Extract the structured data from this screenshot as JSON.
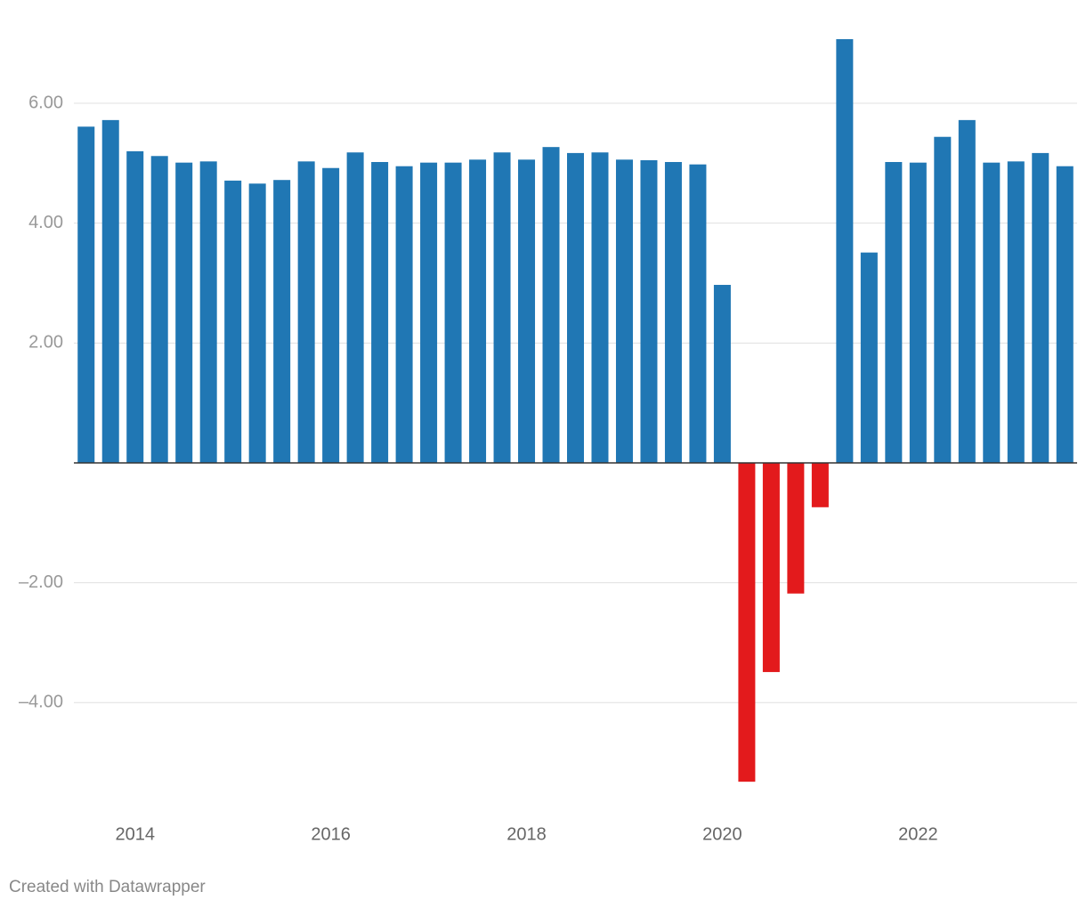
{
  "chart_data": {
    "type": "bar",
    "categories": [
      null,
      null,
      "2014",
      null,
      null,
      null,
      null,
      null,
      null,
      null,
      "2016",
      null,
      null,
      null,
      null,
      null,
      null,
      null,
      "2018",
      null,
      null,
      null,
      null,
      null,
      null,
      null,
      "2020",
      null,
      null,
      null,
      null,
      null,
      null,
      null,
      "2022",
      null,
      null,
      null,
      null,
      null,
      null
    ],
    "values": [
      5.61,
      5.72,
      5.2,
      5.12,
      5.01,
      5.03,
      4.71,
      4.66,
      4.72,
      5.03,
      4.92,
      5.18,
      5.02,
      4.95,
      5.01,
      5.01,
      5.06,
      5.18,
      5.06,
      5.27,
      5.17,
      5.18,
      5.06,
      5.05,
      5.02,
      4.98,
      2.97,
      -5.32,
      -3.49,
      -2.18,
      -0.74,
      7.07,
      3.51,
      5.02,
      5.01,
      5.44,
      5.72,
      5.01,
      5.03,
      5.17,
      4.95
    ],
    "color": "#2077b4",
    "negative_color": "#e31a1c",
    "ylim": [
      -5.6,
      7.3
    ],
    "yticks": [
      {
        "value": -4,
        "label": "–4.00"
      },
      {
        "value": -2,
        "label": "–2.00"
      },
      {
        "value": 2,
        "label": "2.00"
      },
      {
        "value": 4,
        "label": "4.00"
      },
      {
        "value": 6,
        "label": "6.00"
      }
    ],
    "grid": true
  },
  "footer": "Created with Datawrapper"
}
